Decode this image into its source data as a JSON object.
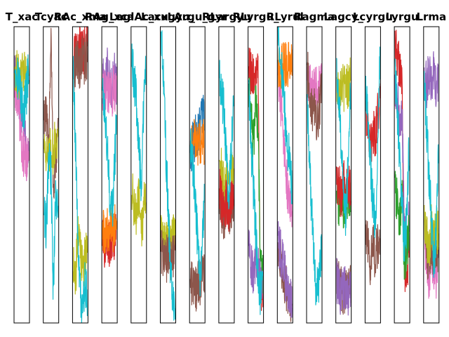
{
  "chart_data": {
    "type": "line",
    "title": "",
    "xlabel": "",
    "ylabel": "",
    "grid": false,
    "legend": "none",
    "axis_ticks": "hidden",
    "series_colors": [
      "#9467bd",
      "#e377c2",
      "#bcbd22",
      "#8c564b",
      "#d62728",
      "#2ca02c",
      "#ff7f0e",
      "#1f77b4",
      "#17becf"
    ],
    "ylim": [
      0,
      1
    ],
    "panels": [
      {
        "title": "T_xac",
        "series": [
          {
            "name": "purple",
            "color": "#9467bd",
            "values": [
              0.84,
              0.79,
              0.75,
              0.71,
              0.68,
              0.56,
              0.56
            ]
          },
          {
            "name": "pink",
            "color": "#e377c2",
            "values": [
              0.8,
              0.78,
              0.7,
              0.6,
              0.56,
              0.56,
              0.56
            ]
          },
          {
            "name": "olive",
            "color": "#bcbd22",
            "values": [
              0.86,
              0.84,
              0.82,
              0.83,
              0.85,
              0.81,
              0.86
            ]
          },
          {
            "name": "cyan",
            "color": "#17becf",
            "values": [
              0.88,
              0.85,
              0.8,
              0.75,
              0.72,
              0.78,
              0.86
            ]
          }
        ]
      },
      {
        "title": "Tcyac",
        "series": [
          {
            "name": "brown",
            "color": "#8c564b",
            "values": [
              0.72,
              0.68,
              0.6,
              0.98,
              0.45,
              0.55,
              0.62
            ]
          },
          {
            "name": "olive",
            "color": "#bcbd22",
            "values": [
              0.62,
              0.58,
              0.55,
              0.6,
              0.57,
              0.63,
              0.6
            ]
          },
          {
            "name": "cyan",
            "color": "#17becf",
            "values": [
              0.4,
              0.3,
              0.55,
              0.5,
              0.1,
              0.45,
              0.35
            ]
          }
        ]
      },
      {
        "title": "RAc_xma",
        "series": [
          {
            "name": "red",
            "color": "#d62728",
            "values": [
              0.88,
              0.9,
              0.92,
              0.94,
              0.9,
              0.93,
              0.95
            ]
          },
          {
            "name": "brown",
            "color": "#8c564b",
            "values": [
              0.85,
              0.87,
              0.89,
              0.86,
              0.9,
              0.88,
              0.91
            ]
          },
          {
            "name": "olive",
            "color": "#bcbd22",
            "values": [
              0.2,
              0.15,
              0.3,
              0.25,
              0.18,
              0.22,
              0.28
            ]
          },
          {
            "name": "cyan",
            "color": "#17becf",
            "values": [
              0.85,
              0.6,
              0.3,
              0.1,
              0.02,
              0.15,
              0.08
            ]
          }
        ]
      },
      {
        "title": "RAg_xca",
        "series": [
          {
            "name": "purple",
            "color": "#9467bd",
            "values": [
              0.82,
              0.8,
              0.85,
              0.83,
              0.79,
              0.84,
              0.81
            ]
          },
          {
            "name": "pink",
            "color": "#e377c2",
            "values": [
              0.78,
              0.8,
              0.76,
              0.79,
              0.77,
              0.8,
              0.78
            ]
          },
          {
            "name": "red",
            "color": "#d62728",
            "values": [
              0.28,
              0.24,
              0.3,
              0.26,
              0.3,
              0.29,
              0.31
            ]
          },
          {
            "name": "orange",
            "color": "#ff7f0e",
            "values": [
              0.3,
              0.31,
              0.32,
              0.32,
              0.32,
              0.32,
              0.33
            ]
          },
          {
            "name": "cyan",
            "color": "#17becf",
            "values": [
              0.8,
              0.7,
              0.6,
              0.45,
              0.35,
              0.5,
              0.7
            ]
          }
        ]
      },
      {
        "title": "LaglAc_xu",
        "series": [
          {
            "name": "olive",
            "color": "#bcbd22",
            "values": [
              0.45,
              0.4,
              0.35,
              0.42,
              0.3,
              0.38,
              0.44
            ]
          },
          {
            "name": "cyan",
            "color": "#17becf",
            "values": [
              0.88,
              0.82,
              0.75,
              0.6,
              0.45,
              0.7,
              0.85
            ]
          }
        ]
      },
      {
        "title": "Lacxgyu_",
        "series": [
          {
            "name": "olive",
            "color": "#bcbd22",
            "values": [
              0.3,
              0.28,
              0.26,
              0.3,
              0.27,
              0.29,
              0.31
            ]
          },
          {
            "name": "brown",
            "color": "#8c564b",
            "values": [
              0.25,
              0.22,
              0.2,
              0.24,
              0.21,
              0.23,
              0.22
            ]
          },
          {
            "name": "cyan",
            "color": "#17becf",
            "values": [
              0.99,
              0.85,
              0.6,
              0.4,
              0.2,
              0.08,
              0.0
            ]
          }
        ]
      },
      {
        "title": "LArgu_gyr",
        "series": [
          {
            "name": "blue",
            "color": "#1f77b4",
            "values": [
              0.58,
              0.6,
              0.62,
              0.64,
              0.66,
              0.68,
              0.7
            ]
          },
          {
            "name": "orange",
            "color": "#ff7f0e",
            "values": [
              0.6,
              0.6,
              0.61,
              0.61,
              0.61,
              0.61,
              0.61
            ]
          },
          {
            "name": "brown",
            "color": "#8c564b",
            "values": [
              0.15,
              0.12,
              0.1,
              0.14,
              0.13,
              0.16,
              0.18
            ]
          },
          {
            "name": "cyan",
            "color": "#17becf",
            "values": [
              0.6,
              0.55,
              0.45,
              0.3,
              0.15,
              0.25,
              0.4
            ]
          }
        ]
      },
      {
        "title": "RLargyu",
        "series": [
          {
            "name": "olive",
            "color": "#bcbd22",
            "values": [
              0.55,
              0.5,
              0.45,
              0.52,
              0.48,
              0.53,
              0.5
            ]
          },
          {
            "name": "brown",
            "color": "#8c564b",
            "values": [
              0.4,
              0.38,
              0.35,
              0.42,
              0.37,
              0.39,
              0.41
            ]
          },
          {
            "name": "red",
            "color": "#d62728",
            "values": [
              0.45,
              0.4,
              0.35,
              0.42,
              0.38,
              0.44,
              0.4
            ]
          },
          {
            "name": "cyan",
            "color": "#17becf",
            "values": [
              0.82,
              0.78,
              0.7,
              0.55,
              0.4,
              0.6,
              0.75
            ]
          }
        ]
      },
      {
        "title": "RLyrgu_",
        "series": [
          {
            "name": "red",
            "color": "#d62728",
            "values": [
              0.86,
              0.84,
              0.82,
              0.85,
              0.83,
              0.1,
              0.12
            ]
          },
          {
            "name": "green",
            "color": "#2ca02c",
            "values": [
              0.8,
              0.7,
              0.6,
              0.75,
              0.65,
              0.2,
              0.15
            ]
          },
          {
            "name": "purple",
            "color": "#9467bd",
            "values": [
              0.25,
              0.2,
              0.15,
              0.22,
              0.18,
              0.12,
              0.1
            ]
          },
          {
            "name": "cyan",
            "color": "#17becf",
            "values": [
              0.8,
              0.6,
              0.45,
              0.3,
              0.15,
              0.1,
              0.12
            ]
          }
        ]
      },
      {
        "title": "RLyrul",
        "series": [
          {
            "name": "brown",
            "color": "#8c564b",
            "values": [
              0.26,
              0.22,
              0.18,
              0.14,
              0.1,
              0.07,
              0.06
            ]
          },
          {
            "name": "purple",
            "color": "#9467bd",
            "values": [
              0.28,
              0.24,
              0.2,
              0.16,
              0.12,
              0.08,
              0.06
            ]
          },
          {
            "name": "pink",
            "color": "#e377c2",
            "values": [
              0.82,
              0.75,
              0.65,
              0.55,
              0.45,
              0.4,
              0.4
            ]
          },
          {
            "name": "orange",
            "color": "#ff7f0e",
            "values": [
              0.87,
              0.87,
              0.87,
              0.87,
              0.87,
              0.87,
              0.87
            ]
          },
          {
            "name": "cyan",
            "color": "#17becf",
            "values": [
              0.99,
              0.9,
              0.8,
              0.7,
              0.6,
              0.55,
              0.45
            ]
          }
        ]
      },
      {
        "title": "Ragma",
        "series": [
          {
            "name": "pink",
            "color": "#e377c2",
            "values": [
              0.8,
              0.82,
              0.78,
              0.81,
              0.79,
              0.82,
              0.8
            ]
          },
          {
            "name": "brown",
            "color": "#8c564b",
            "values": [
              0.85,
              0.8,
              0.7,
              0.75,
              0.65,
              0.72,
              0.78
            ]
          },
          {
            "name": "cyan",
            "color": "#17becf",
            "values": [
              0.75,
              0.55,
              0.35,
              0.2,
              0.1,
              0.15,
              0.25
            ]
          }
        ]
      },
      {
        "title": "Lagcy_",
        "series": [
          {
            "name": "olive",
            "color": "#bcbd22",
            "values": [
              0.8,
              0.78,
              0.82,
              0.79,
              0.81,
              0.8,
              0.83
            ]
          },
          {
            "name": "green",
            "color": "#2ca02c",
            "values": [
              0.42,
              0.4,
              0.45,
              0.38,
              0.41,
              0.44,
              0.4
            ]
          },
          {
            "name": "red",
            "color": "#d62728",
            "values": [
              0.5,
              0.46,
              0.42,
              0.48,
              0.44,
              0.47,
              0.45
            ]
          },
          {
            "name": "brown",
            "color": "#8c564b",
            "values": [
              0.16,
              0.14,
              0.12,
              0.1,
              0.11,
              0.13,
              0.12
            ]
          },
          {
            "name": "purple",
            "color": "#9467bd",
            "values": [
              0.15,
              0.12,
              0.1,
              0.12,
              0.11,
              0.1,
              0.12
            ]
          },
          {
            "name": "cyan",
            "color": "#17becf",
            "values": [
              0.86,
              0.75,
              0.6,
              0.45,
              0.35,
              0.55,
              0.8
            ]
          }
        ]
      },
      {
        "title": "Lcyrgu",
        "series": [
          {
            "name": "red",
            "color": "#d62728",
            "values": [
              0.72,
              0.68,
              0.6,
              0.65,
              0.62,
              0.7,
              0.74
            ]
          },
          {
            "name": "brown",
            "color": "#8c564b",
            "values": [
              0.3,
              0.25,
              0.2,
              0.28,
              0.22,
              0.26,
              0.24
            ]
          },
          {
            "name": "cyan",
            "color": "#17becf",
            "values": [
              0.8,
              0.7,
              0.55,
              0.4,
              0.35,
              0.5,
              0.9
            ]
          }
        ]
      },
      {
        "title": "Lyrgu",
        "series": [
          {
            "name": "red",
            "color": "#d62728",
            "values": [
              0.95,
              0.9,
              0.85,
              0.8,
              0.2,
              0.15,
              0.25
            ]
          },
          {
            "name": "purple",
            "color": "#9467bd",
            "values": [
              0.8,
              0.75,
              0.7,
              0.72,
              0.3,
              0.25,
              0.35
            ]
          },
          {
            "name": "green",
            "color": "#2ca02c",
            "values": [
              0.45,
              0.4,
              0.35,
              0.42,
              0.2,
              0.25,
              0.3
            ]
          },
          {
            "name": "cyan",
            "color": "#17becf",
            "values": [
              0.85,
              0.7,
              0.55,
              0.4,
              0.25,
              0.35,
              0.6
            ]
          }
        ]
      },
      {
        "title": "Lrma",
        "series": [
          {
            "name": "purple",
            "color": "#9467bd",
            "values": [
              0.82,
              0.8,
              0.85,
              0.81,
              0.84,
              0.8,
              0.83
            ]
          },
          {
            "name": "pink",
            "color": "#e377c2",
            "values": [
              0.3,
              0.2,
              0.15,
              0.25,
              0.18,
              0.14,
              0.22
            ]
          },
          {
            "name": "brown",
            "color": "#8c564b",
            "values": [
              0.3,
              0.25,
              0.2,
              0.28,
              0.22,
              0.26,
              0.24
            ]
          },
          {
            "name": "olive",
            "color": "#bcbd22",
            "values": [
              0.35,
              0.3,
              0.25,
              0.32,
              0.28,
              0.33,
              0.3
            ]
          },
          {
            "name": "cyan",
            "color": "#17becf",
            "values": [
              0.8,
              0.65,
              0.5,
              0.35,
              0.2,
              0.3,
              0.55
            ]
          }
        ]
      }
    ]
  }
}
